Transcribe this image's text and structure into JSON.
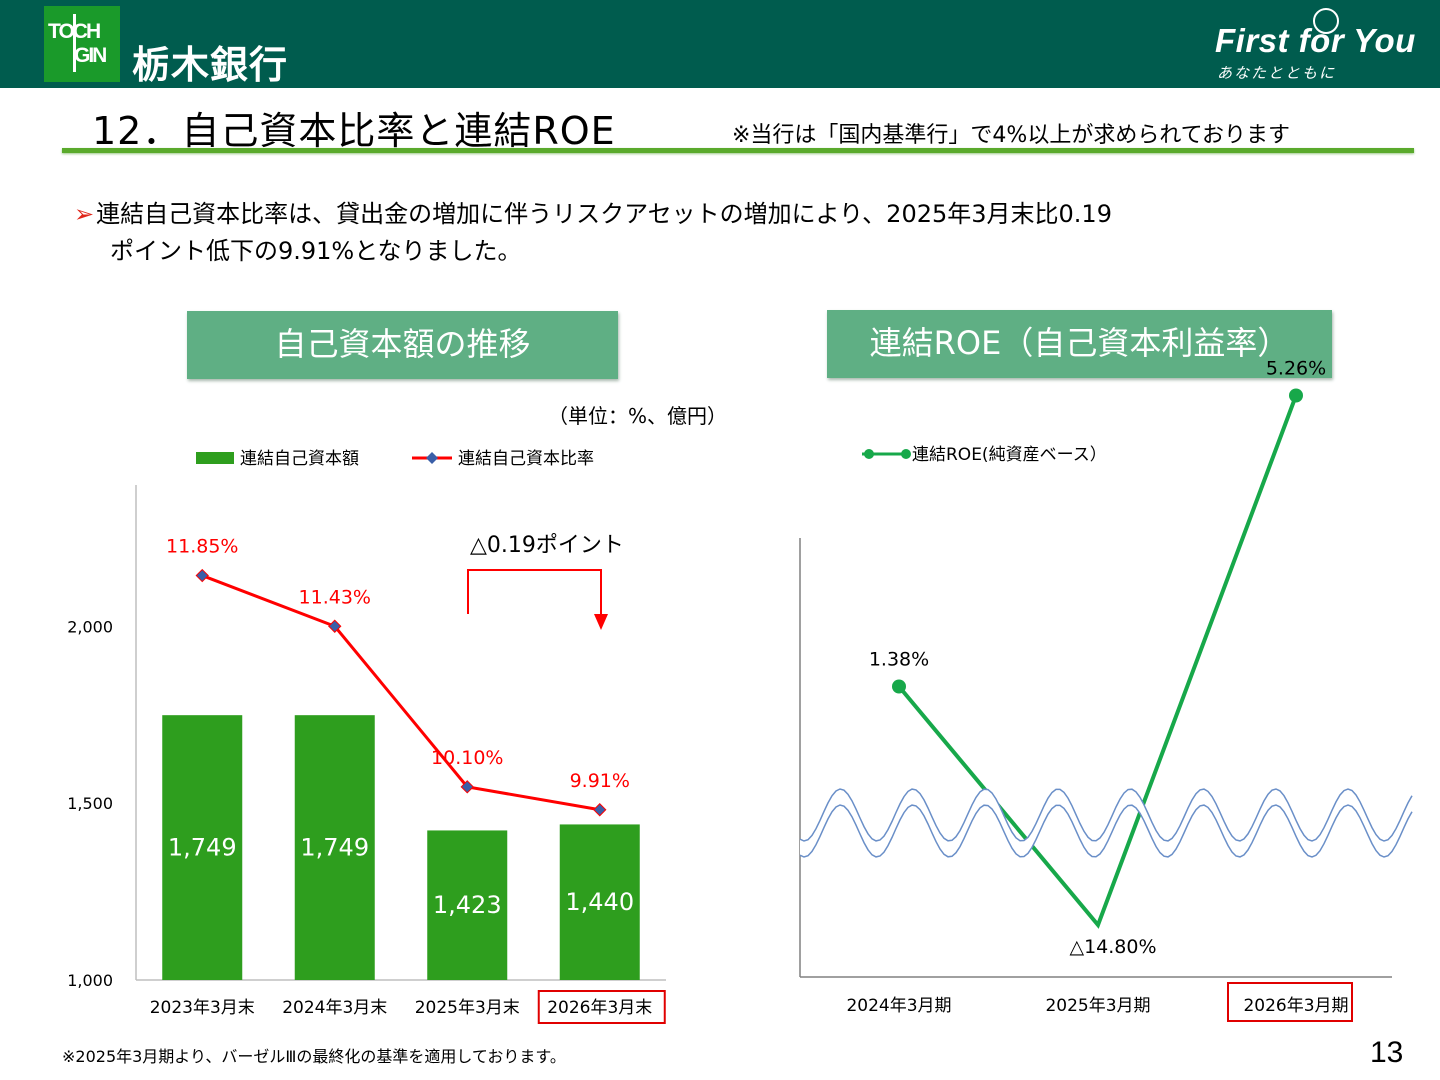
{
  "header": {
    "logo_line1": "TOCH",
    "logo_line2": "GIN",
    "bank_name": "栃木銀行",
    "slogan": "First for You",
    "slogan_sub": "あなたとともに"
  },
  "title": {
    "main": "12．自己資本比率と連結ROE",
    "note": "※当行は「国内基準行」で4%以上が求められております"
  },
  "bullet": {
    "line1": "連結自己資本比率は、貸出金の増加に伴うリスクアセットの増加により、2025年3月末比0.19",
    "line2": "ポイント低下の9.91%となりました。"
  },
  "left_panel": {
    "title": "自己資本額の推移",
    "unit": "（単位：%、億円）",
    "annotation": "△0.19ポイント"
  },
  "right_panel": {
    "title": "連結ROE（自己資本利益率）"
  },
  "chart_data": [
    {
      "type": "bar",
      "categories": [
        "2023年3月末",
        "2024年3月末",
        "2025年3月末",
        "2026年3月末"
      ],
      "series": [
        {
          "name": "連結自己資本額",
          "values": [
            1749,
            1749,
            1423,
            1440
          ],
          "labels": [
            "1,749",
            "1,749",
            "1,423",
            "1,440"
          ],
          "color": "#2e9e1e"
        },
        {
          "name": "連結自己資本比率",
          "type": "line",
          "values": [
            11.85,
            11.43,
            10.1,
            9.91
          ],
          "labels": [
            "11.85%",
            "11.43%",
            "10.10%",
            "9.91%"
          ],
          "color": "#ff0000"
        }
      ],
      "y_ticks": [
        "1,000",
        "1,500",
        "2,000"
      ],
      "ylim": [
        1000,
        2400
      ],
      "highlight_category": 3,
      "legend": "top"
    },
    {
      "type": "line",
      "categories": [
        "2024年3月期",
        "2025年3月期",
        "2026年3月期"
      ],
      "series": [
        {
          "name": "連結ROE(純資産ベース）",
          "values": [
            1.38,
            -14.8,
            5.26
          ],
          "labels": [
            "1.38%",
            "△14.80%",
            "5.26%"
          ],
          "color": "#17a84a"
        }
      ],
      "axis_break": true,
      "highlight_category": 2,
      "legend": "top-left"
    }
  ],
  "footnote": "※2025年3月期より、バーゼルⅢの最終化の基準を適用しております。",
  "page_number": "13"
}
